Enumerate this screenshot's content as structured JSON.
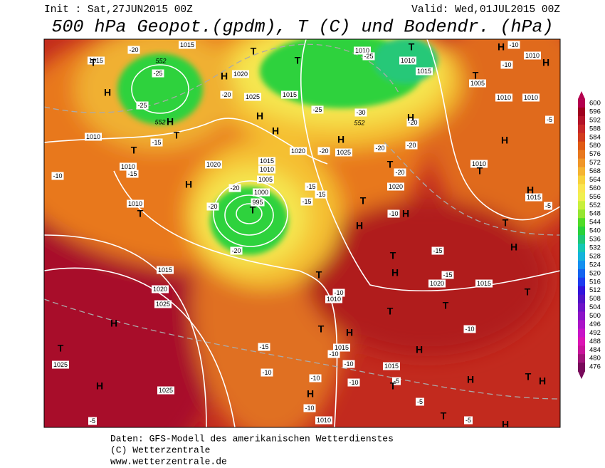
{
  "header": {
    "init": "Init : Sat,27JUN2015 00Z",
    "valid": "Valid: Wed,01JUL2015 00Z",
    "title": "500 hPa Geopot.(gpdm), T (C) und Bodendr. (hPa)"
  },
  "legend": {
    "values": [
      600,
      596,
      592,
      588,
      584,
      580,
      576,
      572,
      568,
      564,
      560,
      556,
      552,
      548,
      544,
      540,
      536,
      532,
      528,
      524,
      520,
      516,
      512,
      508,
      504,
      500,
      496,
      492,
      488,
      484,
      480,
      476
    ],
    "colors": [
      "#b4004e",
      "#a0001e",
      "#b41428",
      "#c82828",
      "#d23c1e",
      "#e05a14",
      "#e8781e",
      "#f09628",
      "#f5b432",
      "#f8d23c",
      "#fae650",
      "#f0f050",
      "#c8f03c",
      "#96e632",
      "#50dc28",
      "#28d23c",
      "#1ec878",
      "#14c8b4",
      "#14b4dc",
      "#1490f0",
      "#1464f0",
      "#1e3cf0",
      "#3214dc",
      "#5014c8",
      "#6e14c8",
      "#8c14c8",
      "#aa14c8",
      "#c814c8",
      "#dc14b4",
      "#c8149a",
      "#a01478",
      "#780a5a"
    ]
  },
  "map": {
    "labels": [
      "1015",
      "1015",
      "1020",
      "1025",
      "1015",
      "1010",
      "1020",
      "1025",
      "1020",
      "1010",
      "1015",
      "1010",
      "1005",
      "1000",
      "995",
      "1010",
      "1015",
      "1020",
      "1025",
      "1010",
      "1020",
      "1015",
      "1015",
      "1015",
      "1025",
      "1025",
      "1010",
      "1010",
      "1010",
      "1015",
      "1005",
      "1010",
      "1010",
      "1010",
      "1010",
      "1015",
      "1020",
      "-20",
      "-25",
      "-25",
      "-20",
      "-15",
      "-15",
      "-20",
      "-20",
      "-20",
      "-15",
      "-15",
      "-15",
      "-20",
      "-25",
      "-30",
      "-25",
      "-20",
      "-20",
      "-20",
      "-20",
      "-10",
      "-10",
      "-10",
      "-15",
      "-15",
      "-10",
      "-10",
      "-15",
      "-10",
      "-10",
      "-10",
      "-10",
      "-10",
      "-5",
      "-5",
      "-5",
      "-10",
      "-5",
      "-10",
      "-5",
      "-5",
      "552",
      "552",
      "552",
      "T",
      "T",
      "T",
      "T",
      "H",
      "H",
      "H",
      "H",
      "T",
      "T",
      "H",
      "T",
      "H",
      "T",
      "H",
      "T",
      "H",
      "T",
      "H",
      "T",
      "T",
      "H",
      "H",
      "T",
      "T",
      "T",
      "T",
      "H",
      "T",
      "H",
      "T",
      "H",
      "H",
      "T",
      "H",
      "H",
      "T",
      "T",
      "H",
      "H",
      "T",
      "H",
      "H",
      "H",
      "H",
      "T",
      "H"
    ]
  },
  "footer": {
    "lines": [
      "Daten: GFS-Modell des amerikanischen Wetterdienstes",
      "(C) Wetterzentrale",
      "www.wetterzentrale.de"
    ]
  }
}
